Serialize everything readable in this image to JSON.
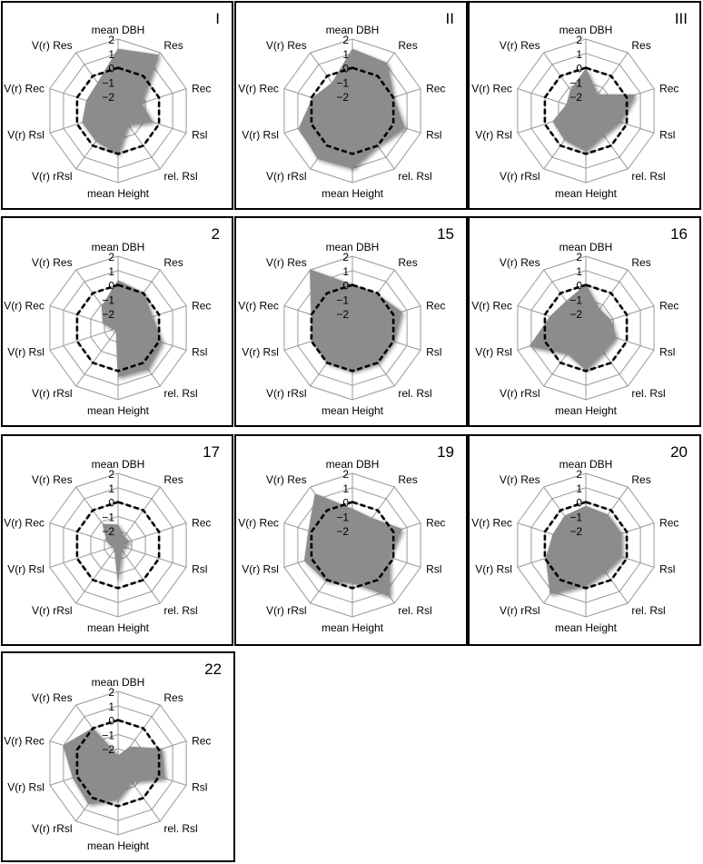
{
  "chart_data": {
    "type": "radar",
    "axes": [
      "mean DBH",
      "Res",
      "Rec",
      "Rsl",
      "rel. Rsl",
      "mean Height",
      "V(r) rRsl",
      "V(r) Rsl",
      "V(r) Rec",
      "V(r) Res"
    ],
    "tick_values": [
      2,
      1,
      0,
      -1,
      -2
    ],
    "tick_labels": [
      "2",
      "1",
      "0",
      "−1",
      "−2"
    ],
    "rlim": [
      -3,
      2
    ],
    "reference_level": 0,
    "reference_style": "dashed",
    "grid": true,
    "colors": {
      "fill": "#8c8c8c",
      "reference": "#000000",
      "grid": "#999999",
      "frame": "#000000"
    },
    "panels": [
      {
        "id": "I",
        "values": [
          1.3,
          1.8,
          -1.3,
          -0.5,
          -1.8,
          0.0,
          -0.4,
          -0.4,
          -0.7,
          -0.6
        ]
      },
      {
        "id": "II",
        "values": [
          1.3,
          1.1,
          0.0,
          0.8,
          0.0,
          1.0,
          1.1,
          0.9,
          -0.1,
          -0.6
        ]
      },
      {
        "id": "III",
        "values": [
          -0.1,
          -1.6,
          0.6,
          -0.5,
          -0.9,
          -0.2,
          -0.5,
          -0.6,
          -1.6,
          -1.2
        ]
      },
      {
        "id": "2",
        "values": [
          0.3,
          0.0,
          -0.5,
          0.2,
          0.5,
          0.4,
          -2.8,
          -2.7,
          -1.9,
          -1.1
        ]
      },
      {
        "id": "15",
        "values": [
          0.0,
          -0.1,
          0.6,
          0.0,
          0.0,
          0.0,
          0.0,
          -0.1,
          0.0,
          2.0
        ]
      },
      {
        "id": "16",
        "values": [
          0.0,
          -1.4,
          -1.2,
          -0.8,
          -0.9,
          -0.1,
          -0.8,
          1.1,
          -0.4,
          -0.7
        ]
      },
      {
        "id": "17",
        "values": [
          -1.6,
          -2.3,
          -2.2,
          -2.6,
          -2.6,
          -0.5,
          -2.6,
          -2.6,
          -2.2,
          -1.2
        ]
      },
      {
        "id": "19",
        "values": [
          -0.5,
          -0.7,
          0.6,
          -0.3,
          1.4,
          -0.4,
          0.1,
          0.5,
          0.2,
          1.4
        ]
      },
      {
        "id": "20",
        "values": [
          -0.3,
          -0.4,
          -0.4,
          -0.4,
          -0.7,
          -0.2,
          1.2,
          -0.1,
          -0.6,
          -0.5
        ]
      },
      {
        "id": "22",
        "values": [
          -2.5,
          -1.6,
          0.2,
          0.4,
          -1.4,
          -0.5,
          0.5,
          0.3,
          1.0,
          0.0
        ]
      }
    ]
  }
}
